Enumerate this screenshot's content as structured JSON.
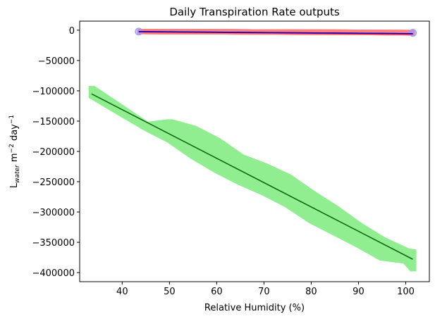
{
  "chart_data": {
    "type": "scatter",
    "title": "Daily Transpiration Rate outputs",
    "xlabel": "Relative Humidity (%)",
    "ylabel": {
      "main": "L",
      "subscript": "water",
      "unit": " m",
      "exp1": "−2",
      "mid": " day",
      "exp2": "−1"
    },
    "xlim": [
      31,
      105
    ],
    "ylim": [
      -415000,
      15000
    ],
    "xticks": [
      40,
      50,
      60,
      70,
      80,
      90,
      100
    ],
    "yticks": [
      0,
      -50000,
      -100000,
      -150000,
      -200000,
      -250000,
      -300000,
      -350000,
      -400000
    ],
    "xtick_labels": [
      "40",
      "50",
      "60",
      "70",
      "80",
      "90",
      "100"
    ],
    "ytick_labels": [
      "0",
      "−50000",
      "−100000",
      "−150000",
      "−200000",
      "−250000",
      "−300000",
      "−350000",
      "−400000"
    ],
    "grid": false,
    "series": [
      {
        "marker": "square",
        "color": "#90ee90",
        "band": {
          "x": [
            33.5,
            45,
            50,
            55,
            60,
            65,
            70,
            75,
            80,
            85,
            90,
            95,
            100,
            101.5
          ],
          "y_top": [
            -92000,
            -152000,
            -147000,
            -158000,
            -178000,
            -205000,
            -220000,
            -238000,
            -265000,
            -290000,
            -318000,
            -342000,
            -360000,
            -362000
          ],
          "y_bottom": [
            -112000,
            -165000,
            -185000,
            -212000,
            -235000,
            -255000,
            -272000,
            -292000,
            -318000,
            -338000,
            -358000,
            -380000,
            -385000,
            -398000
          ]
        },
        "fit": {
          "x": [
            33.5,
            101.5
          ],
          "y": [
            -105000,
            -378000
          ],
          "color": "#006400"
        }
      },
      {
        "marker": "circle",
        "color": "#ff8080",
        "edge_color": "#9999ff",
        "band": {
          "x": [
            43.5,
            50,
            60,
            70,
            80,
            90,
            101.5
          ],
          "y_top": [
            2000,
            2000,
            2000,
            1500,
            1500,
            1000,
            500
          ],
          "y_bottom": [
            -6500,
            -7000,
            -7000,
            -7500,
            -8000,
            -8000,
            -9000
          ]
        },
        "fit": {
          "x": [
            43.5,
            101.5
          ],
          "y": [
            -2300,
            -5600
          ],
          "color": "#0000cd"
        },
        "secondary_fit": {
          "x": [
            43.5,
            101.5
          ],
          "y": [
            -2500,
            -6000
          ],
          "color": "#e0003c"
        }
      }
    ]
  }
}
